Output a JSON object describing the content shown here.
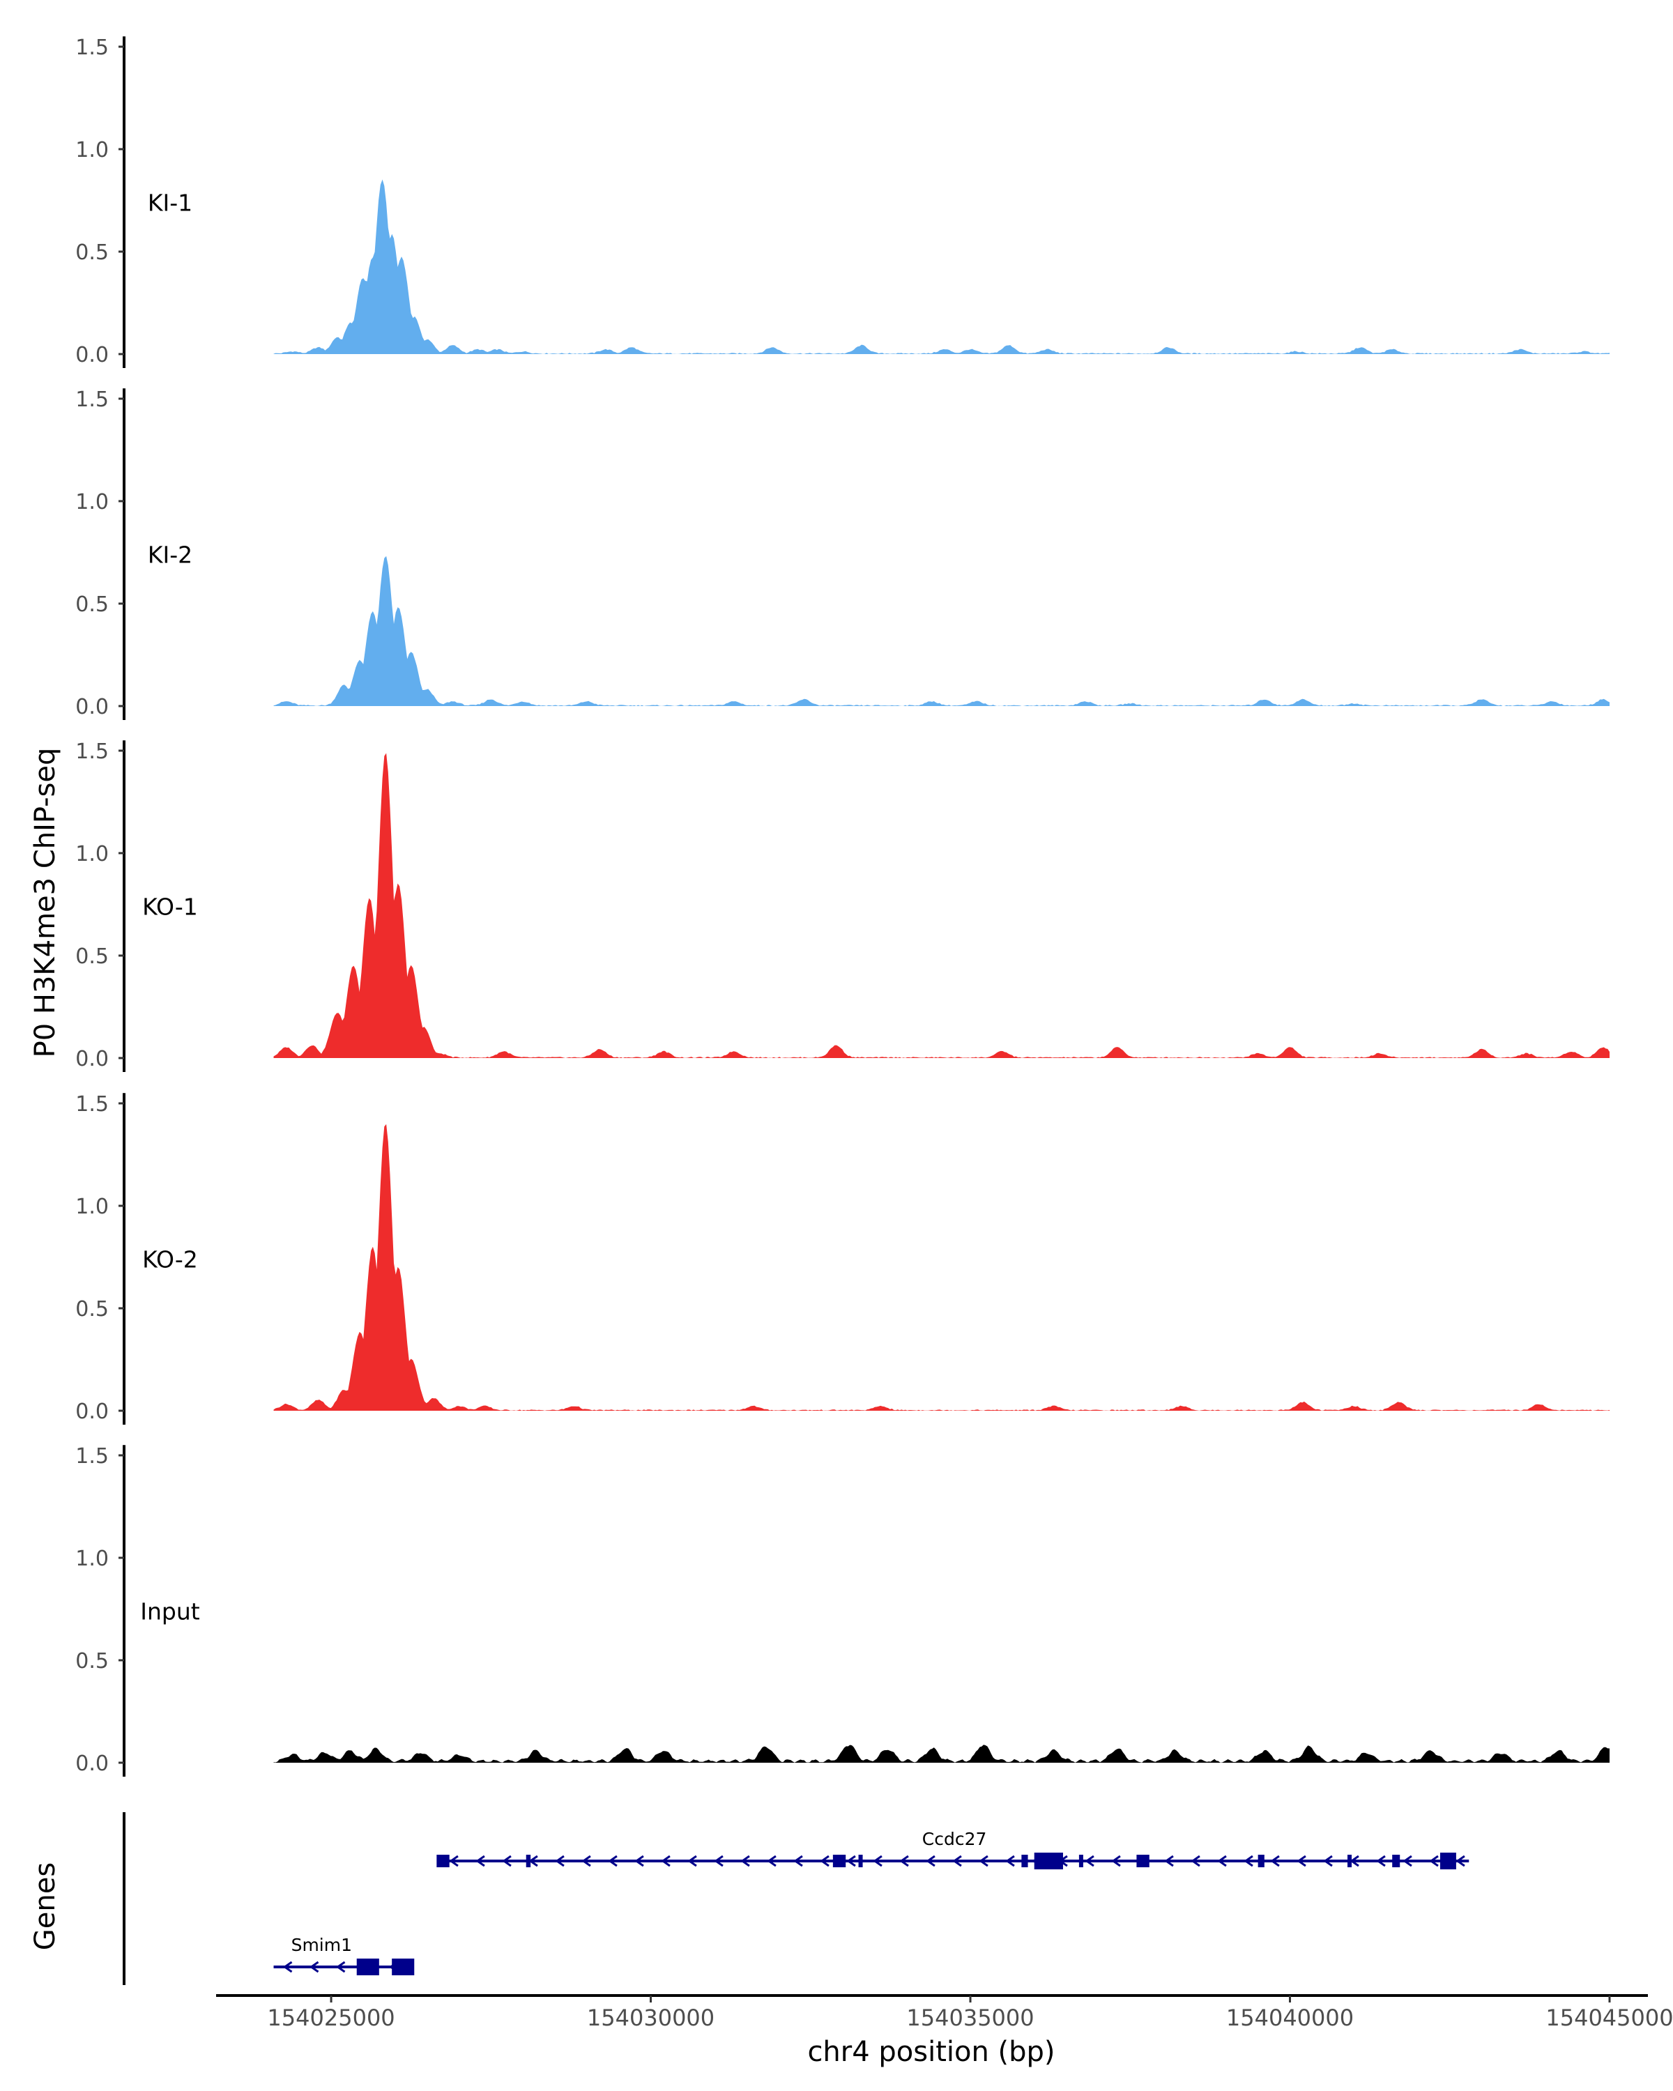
{
  "chart_data": {
    "type": "area",
    "title": "",
    "ylabel": "P0 H3K4me3 ChIP-seq",
    "xlabel": "chr4 position (bp)",
    "genes_label": "Genes",
    "xlim": [
      154023200,
      154045600
    ],
    "ylim": [
      0,
      1.55
    ],
    "x_ticks": [
      154025000,
      154030000,
      154035000,
      154040000,
      154045000
    ],
    "x_tick_labels": [
      "154025000",
      "154030000",
      "154035000",
      "154040000",
      "154045000"
    ],
    "y_ticks": [
      0,
      0.5,
      1.0,
      1.5
    ],
    "y_tick_labels": [
      "0.0",
      "0.5",
      "1.0",
      "1.5"
    ],
    "signal_range": [
      154024100,
      154045000
    ],
    "tracks": [
      {
        "name": "KI-1",
        "color": "#62AEEE",
        "peaks": [
          [
            154024400,
            0.01
          ],
          [
            154024800,
            0.03
          ],
          [
            154025100,
            0.08
          ],
          [
            154025300,
            0.15
          ],
          [
            154025500,
            0.37
          ],
          [
            154025650,
            0.47
          ],
          [
            154025800,
            0.85
          ],
          [
            154025950,
            0.58
          ],
          [
            154026100,
            0.47
          ],
          [
            154026300,
            0.18
          ],
          [
            154026500,
            0.07
          ],
          [
            154026900,
            0.04
          ],
          [
            154027300,
            0.02
          ],
          [
            154027600,
            0.02
          ],
          [
            154028000,
            0.01
          ],
          [
            154029300,
            0.02
          ],
          [
            154029700,
            0.03
          ],
          [
            154031900,
            0.03
          ],
          [
            154033300,
            0.04
          ],
          [
            154034600,
            0.02
          ],
          [
            154035000,
            0.02
          ],
          [
            154035600,
            0.04
          ],
          [
            154036200,
            0.02
          ],
          [
            154038100,
            0.03
          ],
          [
            154040100,
            0.01
          ],
          [
            154041100,
            0.03
          ],
          [
            154041600,
            0.02
          ],
          [
            154043600,
            0.02
          ],
          [
            154044600,
            0.01
          ]
        ]
      },
      {
        "name": "KI-2",
        "color": "#62AEEE",
        "peaks": [
          [
            154024300,
            0.02
          ],
          [
            154025200,
            0.1
          ],
          [
            154025450,
            0.22
          ],
          [
            154025650,
            0.46
          ],
          [
            154025850,
            0.73
          ],
          [
            154026050,
            0.48
          ],
          [
            154026250,
            0.26
          ],
          [
            154026500,
            0.08
          ],
          [
            154026900,
            0.02
          ],
          [
            154027500,
            0.03
          ],
          [
            154028000,
            0.02
          ],
          [
            154029000,
            0.02
          ],
          [
            154031300,
            0.02
          ],
          [
            154032400,
            0.03
          ],
          [
            154034400,
            0.02
          ],
          [
            154035100,
            0.02
          ],
          [
            154036800,
            0.02
          ],
          [
            154037500,
            0.01
          ],
          [
            154039600,
            0.03
          ],
          [
            154040200,
            0.03
          ],
          [
            154041000,
            0.01
          ],
          [
            154043000,
            0.03
          ],
          [
            154044100,
            0.02
          ],
          [
            154044900,
            0.03
          ]
        ]
      },
      {
        "name": "KO-1",
        "color": "#EE2C2C",
        "peaks": [
          [
            154024300,
            0.05
          ],
          [
            154024700,
            0.06
          ],
          [
            154025100,
            0.22
          ],
          [
            154025350,
            0.45
          ],
          [
            154025600,
            0.78
          ],
          [
            154025850,
            1.49
          ],
          [
            154026050,
            0.85
          ],
          [
            154026250,
            0.45
          ],
          [
            154026450,
            0.15
          ],
          [
            154026700,
            0.02
          ],
          [
            154027700,
            0.03
          ],
          [
            154029200,
            0.04
          ],
          [
            154030200,
            0.03
          ],
          [
            154031300,
            0.03
          ],
          [
            154032900,
            0.06
          ],
          [
            154035500,
            0.03
          ],
          [
            154037300,
            0.05
          ],
          [
            154039500,
            0.02
          ],
          [
            154040000,
            0.05
          ],
          [
            154041400,
            0.02
          ],
          [
            154043000,
            0.04
          ],
          [
            154043700,
            0.02
          ],
          [
            154044400,
            0.03
          ],
          [
            154044900,
            0.05
          ]
        ]
      },
      {
        "name": "KO-2",
        "color": "#EE2C2C",
        "peaks": [
          [
            154024300,
            0.03
          ],
          [
            154024800,
            0.05
          ],
          [
            154025200,
            0.1
          ],
          [
            154025450,
            0.38
          ],
          [
            154025650,
            0.8
          ],
          [
            154025850,
            1.4
          ],
          [
            154026050,
            0.7
          ],
          [
            154026250,
            0.25
          ],
          [
            154026600,
            0.06
          ],
          [
            154027000,
            0.02
          ],
          [
            154027400,
            0.02
          ],
          [
            154028800,
            0.02
          ],
          [
            154031600,
            0.02
          ],
          [
            154033600,
            0.02
          ],
          [
            154036300,
            0.02
          ],
          [
            154038300,
            0.02
          ],
          [
            154040200,
            0.04
          ],
          [
            154041000,
            0.02
          ],
          [
            154041700,
            0.04
          ],
          [
            154043900,
            0.03
          ]
        ]
      },
      {
        "name": "Input",
        "color": "#000000",
        "peaks": [
          [
            154024400,
            0.03
          ],
          [
            154024900,
            0.04
          ],
          [
            154025300,
            0.05
          ],
          [
            154025700,
            0.06
          ],
          [
            154026400,
            0.04
          ],
          [
            154027000,
            0.03
          ],
          [
            154028200,
            0.05
          ],
          [
            154029600,
            0.06
          ],
          [
            154030200,
            0.05
          ],
          [
            154031800,
            0.07
          ],
          [
            154033100,
            0.08
          ],
          [
            154033700,
            0.06
          ],
          [
            154034400,
            0.06
          ],
          [
            154035200,
            0.08
          ],
          [
            154036300,
            0.05
          ],
          [
            154037300,
            0.06
          ],
          [
            154038200,
            0.05
          ],
          [
            154039600,
            0.05
          ],
          [
            154040300,
            0.07
          ],
          [
            154041200,
            0.04
          ],
          [
            154042200,
            0.05
          ],
          [
            154043300,
            0.04
          ],
          [
            154044200,
            0.05
          ],
          [
            154044950,
            0.07
          ]
        ]
      }
    ],
    "genes": [
      {
        "name": "Ccdc27",
        "start": 154026700,
        "end": 154042800,
        "strand": "-",
        "exons": [
          [
            154026650,
            154026850
          ],
          [
            154028050,
            154028120
          ],
          [
            154032850,
            154033050
          ],
          [
            154033250,
            154033310
          ],
          [
            154035800,
            154035900
          ],
          [
            154036000,
            154036450
          ],
          [
            154036700,
            154036760
          ],
          [
            154037600,
            154037800
          ],
          [
            154039500,
            154039600
          ],
          [
            154040900,
            154040960
          ],
          [
            154041600,
            154041720
          ],
          [
            154042350,
            154042600
          ]
        ]
      },
      {
        "name": "Smim1",
        "start": 154024100,
        "end": 154026150,
        "strand": "-",
        "exons": [
          [
            154025400,
            154025750
          ],
          [
            154025950,
            154026300
          ]
        ]
      }
    ]
  }
}
